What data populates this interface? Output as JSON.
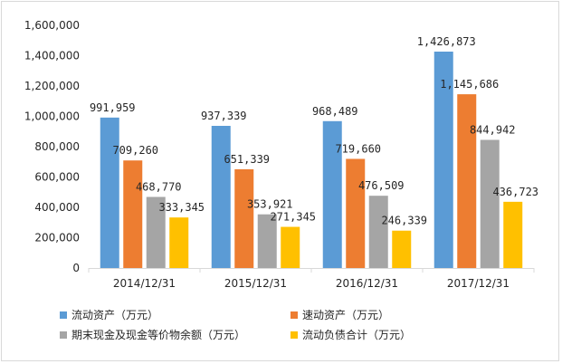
{
  "chart_data": {
    "type": "bar",
    "title": "",
    "xlabel": "",
    "ylabel": "",
    "ylim": [
      0,
      1600000
    ],
    "y_ticks": [
      "0",
      "200,000",
      "400,000",
      "600,000",
      "800,000",
      "1,000,000",
      "1,200,000",
      "1,400,000",
      "1,600,000"
    ],
    "grid": false,
    "legend_position": "bottom",
    "categories": [
      "2014/12/31",
      "2015/12/31",
      "2016/12/31",
      "2017/12/31"
    ],
    "series": [
      {
        "name": "流动资产（万元）",
        "color": "#5b9bd5",
        "values": [
          991959,
          937339,
          968489,
          1426873
        ],
        "labels": [
          "991,959",
          "937,339",
          "968,489",
          "1,426,873"
        ]
      },
      {
        "name": "速动资产（万元）",
        "color": "#ed7d31",
        "values": [
          709260,
          651339,
          719660,
          1145686
        ],
        "labels": [
          "709,260",
          "651,339",
          "719,660",
          "1,145,686"
        ]
      },
      {
        "name": "期末现金及现金等价物余额（万元）",
        "color": "#a5a5a5",
        "values": [
          468770,
          353921,
          476509,
          844942
        ],
        "labels": [
          "468,770",
          "353,921",
          "476,509",
          "844,942"
        ]
      },
      {
        "name": "流动负债合计（万元）",
        "color": "#ffc000",
        "values": [
          333345,
          271345,
          246339,
          436723
        ],
        "labels": [
          "333,345",
          "271,345",
          "246,339",
          "436,723"
        ]
      }
    ]
  }
}
